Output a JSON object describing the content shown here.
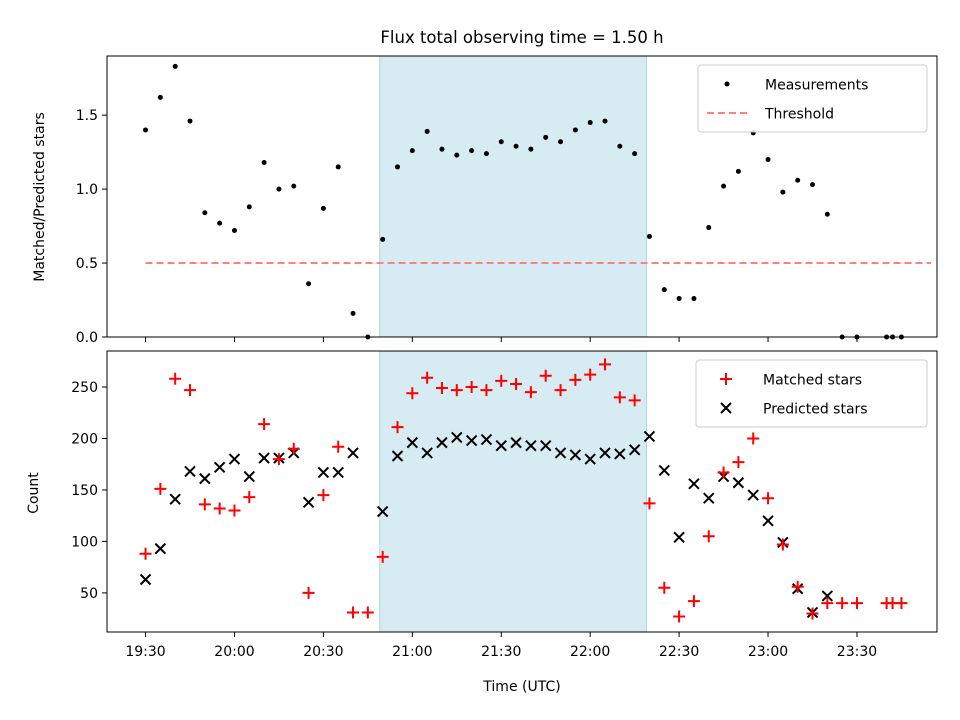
{
  "chart_data": {
    "title": "Flux total observing time = 1.50 h",
    "xlabel": "Time (UTC)",
    "x_tick_labels": [
      "19:30",
      "20:00",
      "20:30",
      "21:00",
      "21:30",
      "22:00",
      "22:30",
      "23:00",
      "23:30"
    ],
    "x_ticks_minutes": [
      1170,
      1200,
      1230,
      1260,
      1290,
      1320,
      1350,
      1380,
      1410
    ],
    "xlim_minutes": [
      1157,
      1437
    ],
    "highlight_span_minutes": [
      1249,
      1339
    ],
    "colors": {
      "highlight": "#add8e6",
      "measurements": "#000000",
      "threshold": "#ff7f7f",
      "matched": "#ff0000",
      "predicted": "#000000"
    },
    "top": {
      "type": "scatter",
      "ylabel": "Matched/Predicted stars",
      "ylim": [
        0,
        1.9
      ],
      "y_ticks": [
        0.0,
        0.5,
        1.0,
        1.5
      ],
      "y_tick_labels": [
        "0.0",
        "0.5",
        "1.0",
        "1.5"
      ],
      "threshold": 0.5,
      "threshold_x_range": [
        "19:30",
        "23:55"
      ],
      "legend_position": "top-right",
      "legend": [
        "Measurements",
        "Threshold"
      ],
      "measurements": {
        "name": "Measurements",
        "x": [
          "19:30",
          "19:35",
          "19:40",
          "19:45",
          "19:50",
          "19:55",
          "20:00",
          "20:05",
          "20:10",
          "20:15",
          "20:20",
          "20:25",
          "20:30",
          "20:35",
          "20:40",
          "20:45",
          "20:50",
          "20:55",
          "21:00",
          "21:05",
          "21:10",
          "21:15",
          "21:20",
          "21:25",
          "21:30",
          "21:35",
          "21:40",
          "21:45",
          "21:50",
          "21:55",
          "22:00",
          "22:05",
          "22:10",
          "22:15",
          "22:20",
          "22:25",
          "22:30",
          "22:35",
          "22:40",
          "22:45",
          "22:50",
          "22:55",
          "23:00",
          "23:05",
          "23:10",
          "23:15",
          "23:20",
          "23:25",
          "23:30",
          "23:40",
          "23:42",
          "23:45"
        ],
        "y": [
          1.4,
          1.62,
          1.83,
          1.46,
          0.84,
          0.77,
          0.72,
          0.88,
          1.18,
          1.0,
          1.02,
          0.36,
          0.87,
          1.15,
          0.16,
          0.0,
          0.66,
          1.15,
          1.26,
          1.39,
          1.27,
          1.23,
          1.26,
          1.24,
          1.32,
          1.29,
          1.27,
          1.35,
          1.32,
          1.4,
          1.45,
          1.46,
          1.29,
          1.24,
          0.68,
          0.32,
          0.26,
          0.26,
          0.74,
          1.02,
          1.12,
          1.38,
          1.2,
          0.98,
          1.06,
          1.03,
          0.83,
          0.0,
          0.0,
          0.0,
          0.0,
          0.0
        ]
      },
      "threshold_name": "Threshold"
    },
    "bottom": {
      "type": "scatter",
      "ylabel": "Count",
      "ylim": [
        12,
        285
      ],
      "y_ticks": [
        50,
        100,
        150,
        200,
        250
      ],
      "y_tick_labels": [
        "50",
        "100",
        "150",
        "200",
        "250"
      ],
      "legend_position": "top-right",
      "legend": [
        "Matched stars",
        "Predicted stars"
      ],
      "series": [
        {
          "name": "Matched stars",
          "marker": "+",
          "x": [
            "19:30",
            "19:35",
            "19:40",
            "19:45",
            "19:50",
            "19:55",
            "20:00",
            "20:05",
            "20:10",
            "20:15",
            "20:20",
            "20:25",
            "20:30",
            "20:35",
            "20:40",
            "20:45",
            "20:50",
            "20:55",
            "21:00",
            "21:05",
            "21:10",
            "21:15",
            "21:20",
            "21:25",
            "21:30",
            "21:35",
            "21:40",
            "21:45",
            "21:50",
            "21:55",
            "22:00",
            "22:05",
            "22:10",
            "22:15",
            "22:20",
            "22:25",
            "22:30",
            "22:35",
            "22:40",
            "22:45",
            "22:50",
            "22:55",
            "23:00",
            "23:05",
            "23:10",
            "23:15",
            "23:20",
            "23:25",
            "23:30",
            "23:40",
            "23:42",
            "23:45"
          ],
          "y": [
            88,
            151,
            258,
            247,
            136,
            132,
            130,
            143,
            214,
            180,
            190,
            50,
            145,
            192,
            31,
            31,
            85,
            211,
            244,
            259,
            249,
            247,
            250,
            247,
            256,
            253,
            245,
            261,
            247,
            257,
            262,
            272,
            240,
            237,
            137,
            55,
            27,
            42,
            105,
            167,
            177,
            200,
            142,
            97,
            56,
            30,
            40,
            40,
            40,
            40,
            40,
            40
          ]
        },
        {
          "name": "Predicted stars",
          "marker": "x",
          "x": [
            "19:30",
            "19:35",
            "19:40",
            "19:45",
            "19:50",
            "19:55",
            "20:00",
            "20:05",
            "20:10",
            "20:15",
            "20:20",
            "20:25",
            "20:30",
            "20:35",
            "20:40",
            "20:50",
            "20:55",
            "21:00",
            "21:05",
            "21:10",
            "21:15",
            "21:20",
            "21:25",
            "21:30",
            "21:35",
            "21:40",
            "21:45",
            "21:50",
            "21:55",
            "22:00",
            "22:05",
            "22:10",
            "22:15",
            "22:20",
            "22:25",
            "22:30",
            "22:35",
            "22:40",
            "22:45",
            "22:50",
            "22:55",
            "23:00",
            "23:05",
            "23:10",
            "23:15",
            "23:20"
          ],
          "y": [
            63,
            93,
            141,
            168,
            161,
            172,
            180,
            163,
            181,
            181,
            186,
            138,
            167,
            167,
            186,
            129,
            183,
            196,
            186,
            196,
            201,
            198,
            199,
            193,
            196,
            193,
            193,
            186,
            184,
            180,
            186,
            185,
            189,
            202,
            169,
            104,
            156,
            142,
            163,
            157,
            145,
            120,
            99,
            54,
            31,
            47
          ]
        }
      ]
    }
  }
}
